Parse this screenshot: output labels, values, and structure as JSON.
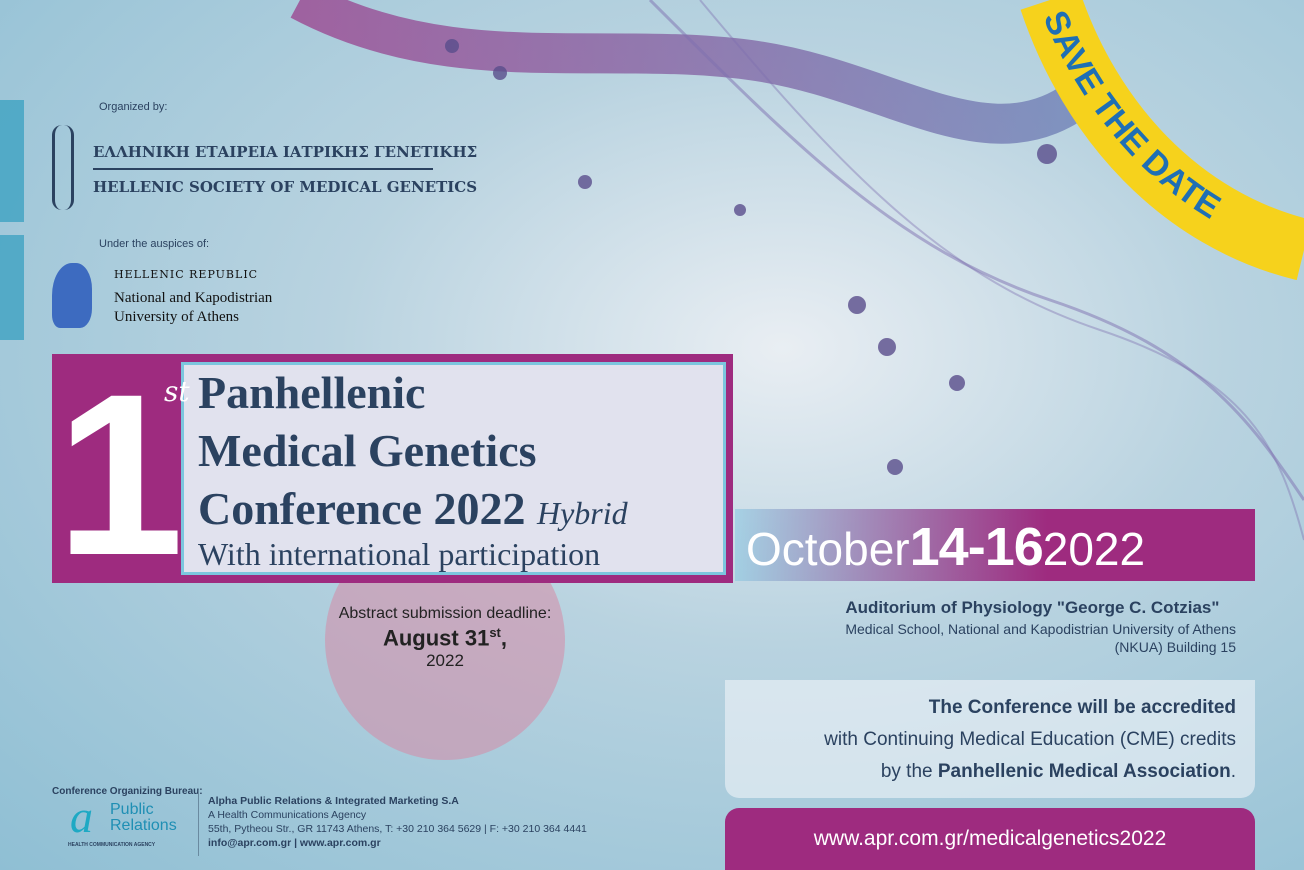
{
  "organizer": {
    "label": "Organized by:",
    "name_gr": "ΕΛΛΗΝΙΚΗ ΕΤΑΙΡΕΙΑ ΙΑΤΡΙΚΗΣ ΓΕΝΕΤΙΚΗΣ",
    "name_en": "HELLENIC SOCIETY OF MEDICAL GENETICS"
  },
  "auspices": {
    "label": "Under the auspices of:",
    "line1": "HELLENIC REPUBLIC",
    "line2": "National and Kapodistrian",
    "line3": "University of Athens"
  },
  "ribbon": "SAVE THE DATE",
  "conference": {
    "ordinal": "1",
    "ordinal_suffix": "st",
    "line1": "Panhellenic",
    "line2": "Medical Genetics",
    "line3": "Conference",
    "year": "2022",
    "mode": "Hybrid",
    "line4": "With international participation"
  },
  "abstract": {
    "label": "Abstract submission deadline:",
    "date": "August 31",
    "date_suffix": "st",
    "comma": ",",
    "year": "2022"
  },
  "dates": {
    "month": "October",
    "days": "14-16",
    "year": "2022"
  },
  "venue": {
    "name": "Auditorium of Physiology \"George C. Cotzias\"",
    "line2": "Medical School, National and Kapodistrian University of Athens",
    "line3": "(NKUA) Building 15"
  },
  "accreditation": {
    "line1": "The Conference will be accredited",
    "line2": "with Continuing Medical Education (CME) credits",
    "line3_pre": "by the ",
    "line3_bold": "Panhellenic Medical Association",
    "line3_post": "."
  },
  "url": "www.apr.com.gr/medicalgenetics2022",
  "bureau": {
    "label": "Conference Organizing Bureau:",
    "logo_line1": "Public",
    "logo_line2": "Relations",
    "logo_tag": "HEALTH COMMUNICATION AGENCY",
    "company": "Alpha Public Relations & Integrated Marketing S.A",
    "tagline": "A Health Communications Agency",
    "address": "55th, Pytheou Str., GR 11743 Athens, T: +30 210 364 5629  |  F: +30 210 364 4441",
    "contact": "info@apr.com.gr | www.apr.com.gr"
  },
  "colors": {
    "magenta": "#9e2b7f",
    "navy": "#2b4260",
    "yellow": "#f6d21c",
    "ribbon_text": "#1f6fb4"
  }
}
